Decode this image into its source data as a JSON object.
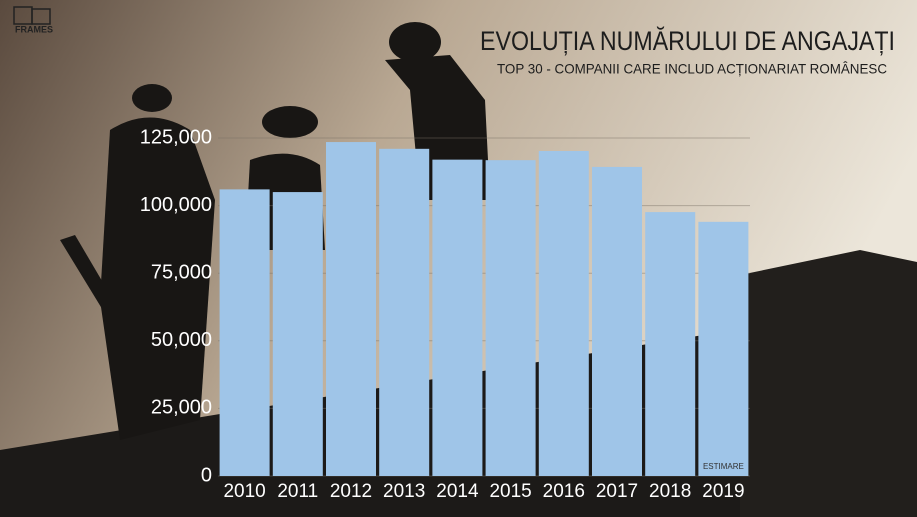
{
  "logo": "FRAMES",
  "chart_data": {
    "type": "bar",
    "title": "EVOLUȚIA NUMĂRULUI DE ANGAJAȚI",
    "subtitle": "TOP 30 - COMPANII CARE INCLUD ACȚIONARIAT ROMÂNESC",
    "categories": [
      "2010",
      "2011",
      "2012",
      "2013",
      "2014",
      "2015",
      "2016",
      "2017",
      "2018",
      "2019"
    ],
    "values": [
      106000,
      105000,
      123500,
      121000,
      117000,
      116800,
      120200,
      114300,
      97600,
      94000
    ],
    "color": "#9fc5e8",
    "ylim": [
      0,
      125000
    ],
    "yticks": [
      0,
      {
        "value": 25000,
        "label": "25,000"
      },
      {
        "value": 50000,
        "label": "50,000"
      },
      {
        "value": 75000,
        "label": "75,000"
      },
      {
        "value": 100000,
        "label": "100,000"
      },
      {
        "value": 125000,
        "label": "125,000"
      }
    ],
    "grid": true,
    "annotation": "ESTIMARE"
  }
}
